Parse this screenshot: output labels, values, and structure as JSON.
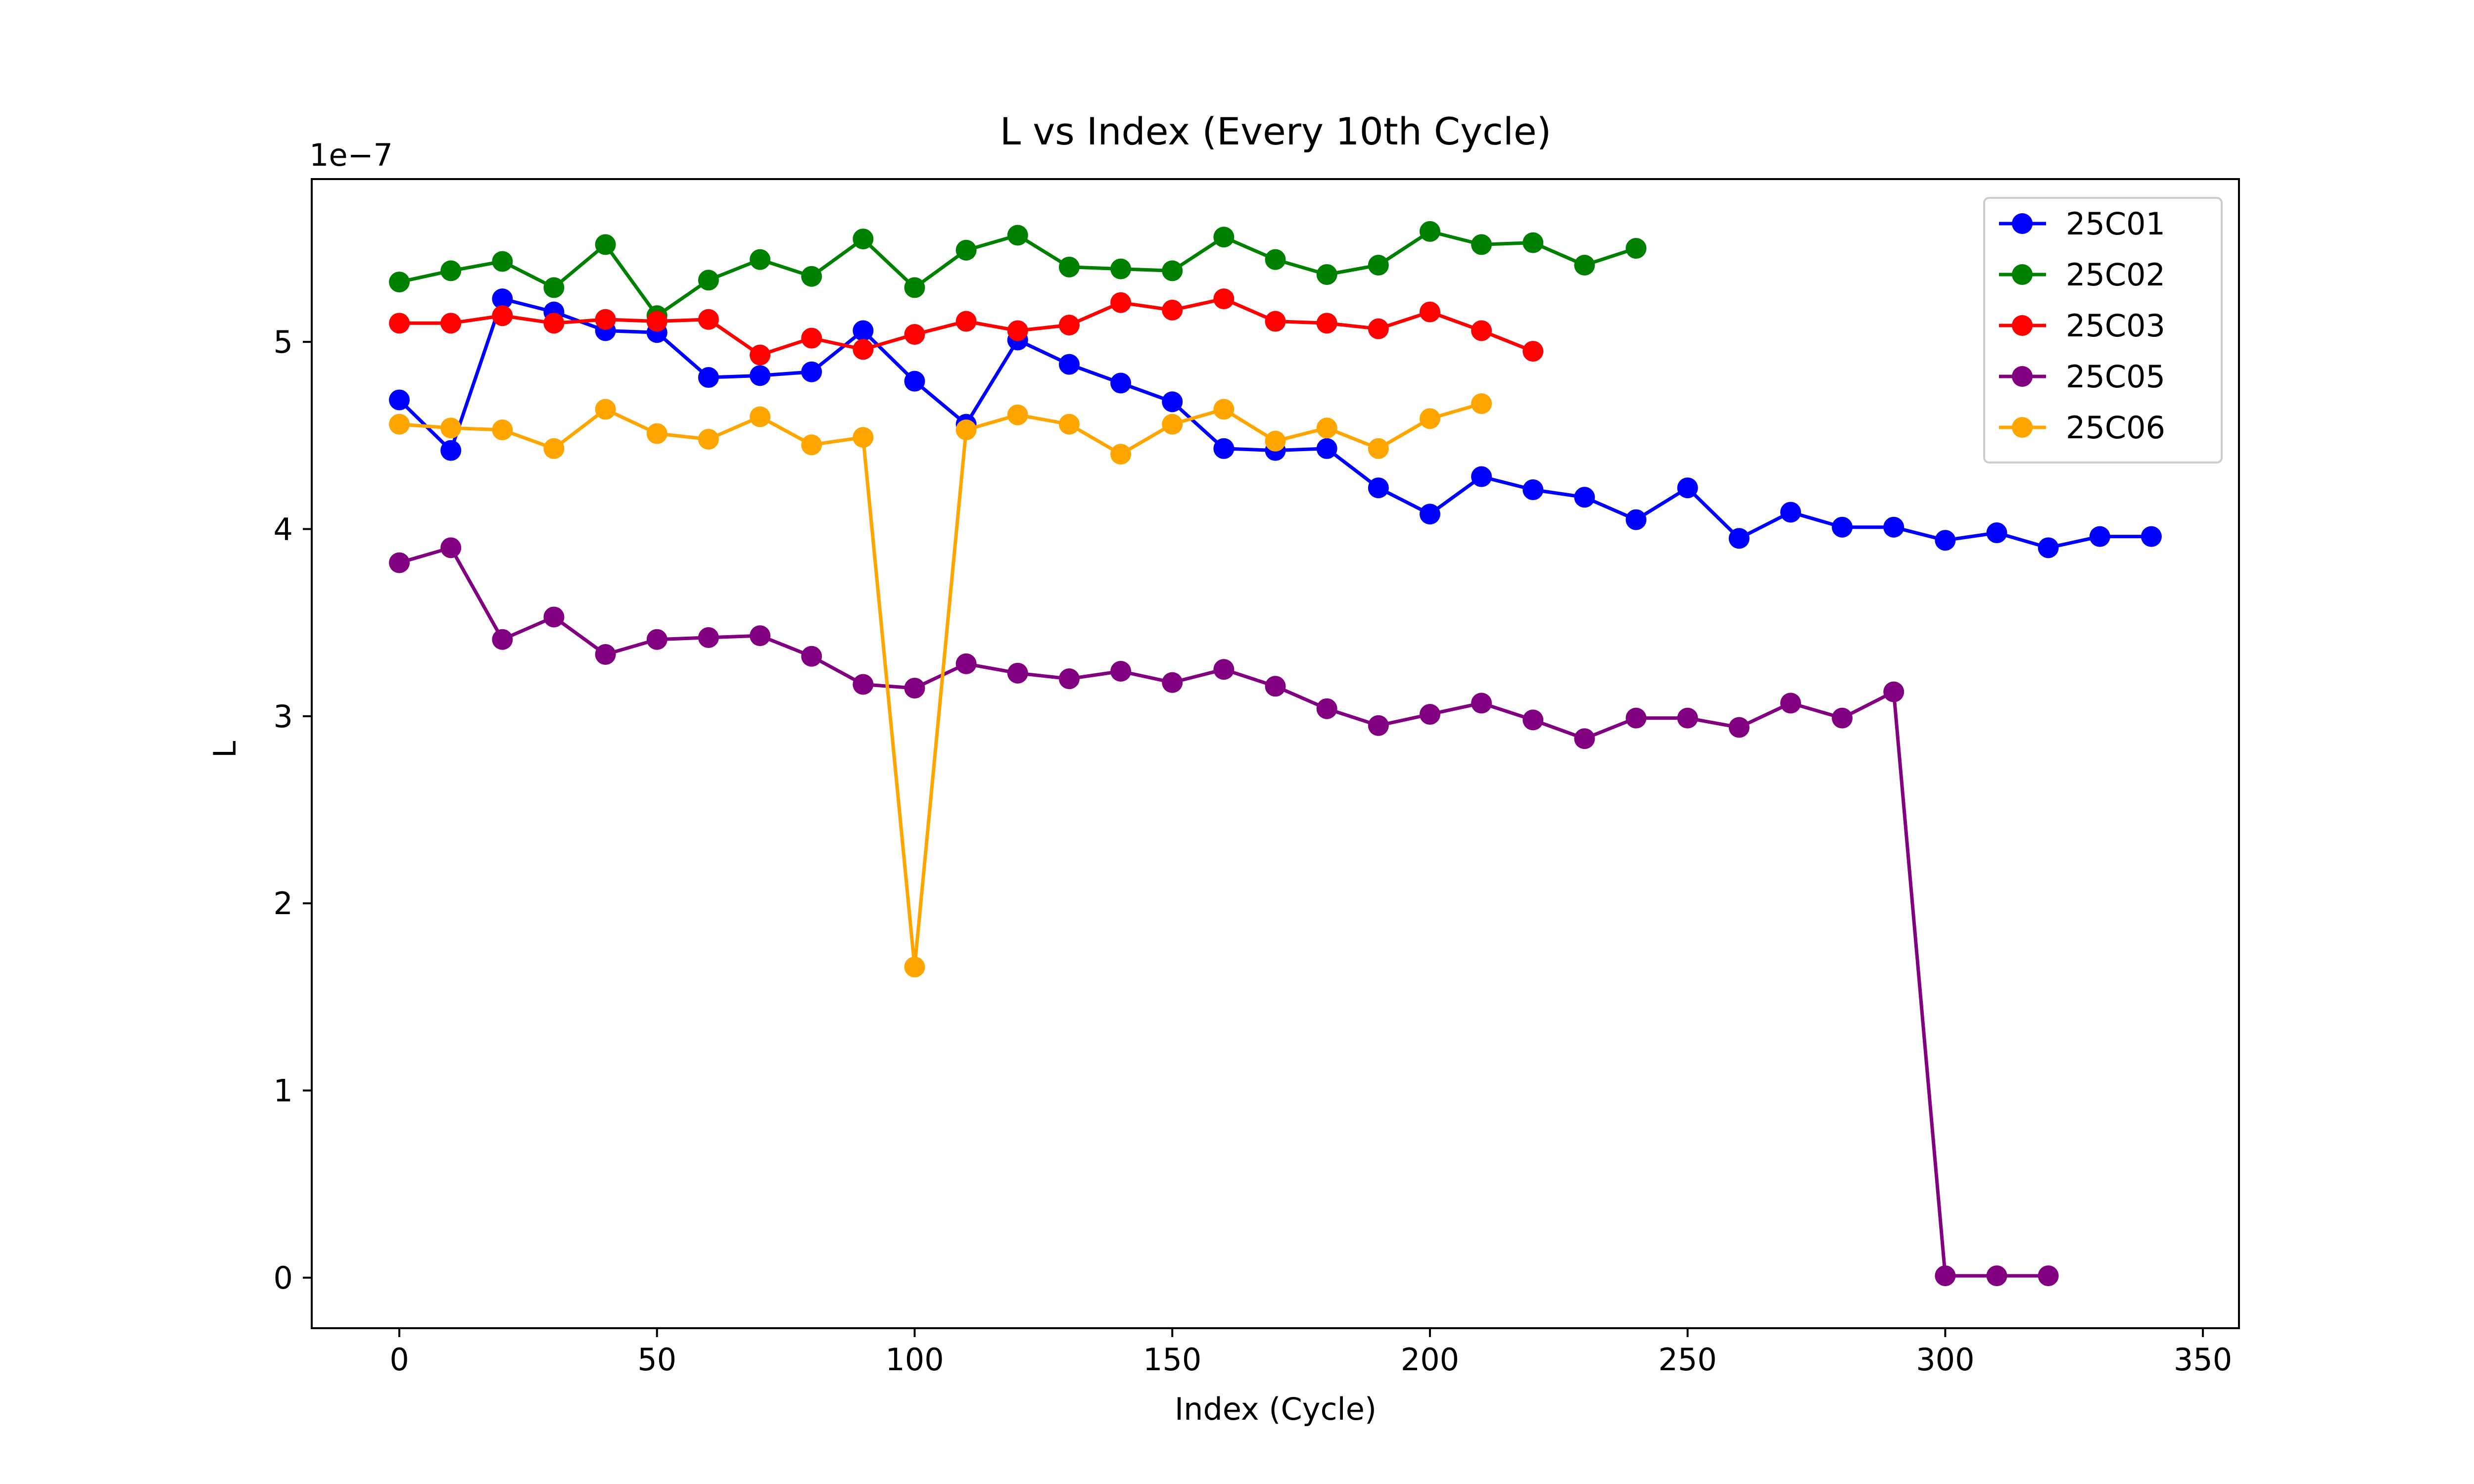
{
  "chart_data": {
    "type": "line",
    "title": "L vs Index (Every 10th Cycle)",
    "xlabel": "Index (Cycle)",
    "ylabel": "L",
    "y_offset_label": "1e−7",
    "y_scale_note": "values in units of 1e-7",
    "xlim": [
      -17,
      357
    ],
    "ylim": [
      -0.27,
      5.87
    ],
    "x_ticks": [
      0,
      50,
      100,
      150,
      200,
      250,
      300,
      350
    ],
    "y_ticks": [
      0,
      1,
      2,
      3,
      4,
      5
    ],
    "grid": false,
    "legend_position": "top-right",
    "series": [
      {
        "name": "25C01",
        "color": "#0000ff",
        "x": [
          0,
          10,
          20,
          30,
          40,
          50,
          60,
          70,
          80,
          90,
          100,
          110,
          120,
          130,
          140,
          150,
          160,
          170,
          180,
          190,
          200,
          210,
          220,
          230,
          240,
          250,
          260,
          270,
          280,
          290,
          300,
          310,
          320,
          330,
          340
        ],
        "values": [
          4.69,
          4.42,
          5.23,
          5.16,
          5.06,
          5.05,
          4.81,
          4.82,
          4.84,
          5.06,
          4.79,
          4.56,
          5.01,
          4.88,
          4.78,
          4.68,
          4.43,
          4.42,
          4.43,
          4.22,
          4.08,
          4.28,
          4.21,
          4.17,
          4.05,
          4.22,
          3.95,
          4.09,
          4.01,
          4.01,
          3.94,
          3.98,
          3.9,
          3.96,
          3.96
        ]
      },
      {
        "name": "25C02",
        "color": "#008000",
        "x": [
          0,
          10,
          20,
          30,
          40,
          50,
          60,
          70,
          80,
          90,
          100,
          110,
          120,
          130,
          140,
          150,
          160,
          170,
          180,
          190,
          200,
          210,
          220,
          230,
          240
        ],
        "values": [
          5.32,
          5.38,
          5.43,
          5.29,
          5.52,
          5.14,
          5.33,
          5.44,
          5.35,
          5.55,
          5.29,
          5.49,
          5.57,
          5.4,
          5.39,
          5.38,
          5.56,
          5.44,
          5.36,
          5.41,
          5.59,
          5.52,
          5.53,
          5.41,
          5.5
        ]
      },
      {
        "name": "25C03",
        "color": "#ff0000",
        "x": [
          0,
          10,
          20,
          30,
          40,
          50,
          60,
          70,
          80,
          90,
          100,
          110,
          120,
          130,
          140,
          150,
          160,
          170,
          180,
          190,
          200,
          210,
          220
        ],
        "values": [
          5.1,
          5.1,
          5.14,
          5.1,
          5.12,
          5.11,
          5.12,
          4.93,
          5.02,
          4.96,
          5.04,
          5.11,
          5.06,
          5.09,
          5.21,
          5.17,
          5.23,
          5.11,
          5.1,
          5.07,
          5.16,
          5.06,
          4.95
        ]
      },
      {
        "name": "25C05",
        "color": "#800080",
        "x": [
          0,
          10,
          20,
          30,
          40,
          50,
          60,
          70,
          80,
          90,
          100,
          110,
          120,
          130,
          140,
          150,
          160,
          170,
          180,
          190,
          200,
          210,
          220,
          230,
          240,
          250,
          260,
          270,
          280,
          290,
          300,
          310,
          320
        ],
        "values": [
          3.82,
          3.9,
          3.41,
          3.53,
          3.33,
          3.41,
          3.42,
          3.43,
          3.32,
          3.17,
          3.15,
          3.28,
          3.23,
          3.2,
          3.24,
          3.18,
          3.25,
          3.16,
          3.04,
          2.95,
          3.01,
          3.07,
          2.98,
          2.88,
          2.99,
          2.99,
          2.94,
          3.07,
          2.99,
          3.13,
          0.01,
          0.01,
          0.01
        ]
      },
      {
        "name": "25C06",
        "color": "#ffa500",
        "x": [
          0,
          10,
          20,
          30,
          40,
          50,
          60,
          70,
          80,
          90,
          100,
          110,
          120,
          130,
          140,
          150,
          160,
          170,
          180,
          190,
          200,
          210
        ],
        "values": [
          4.56,
          4.54,
          4.53,
          4.43,
          4.64,
          4.51,
          4.48,
          4.6,
          4.45,
          4.49,
          1.66,
          4.53,
          4.61,
          4.56,
          4.4,
          4.56,
          4.64,
          4.47,
          4.54,
          4.43,
          4.59,
          4.67
        ]
      }
    ]
  }
}
